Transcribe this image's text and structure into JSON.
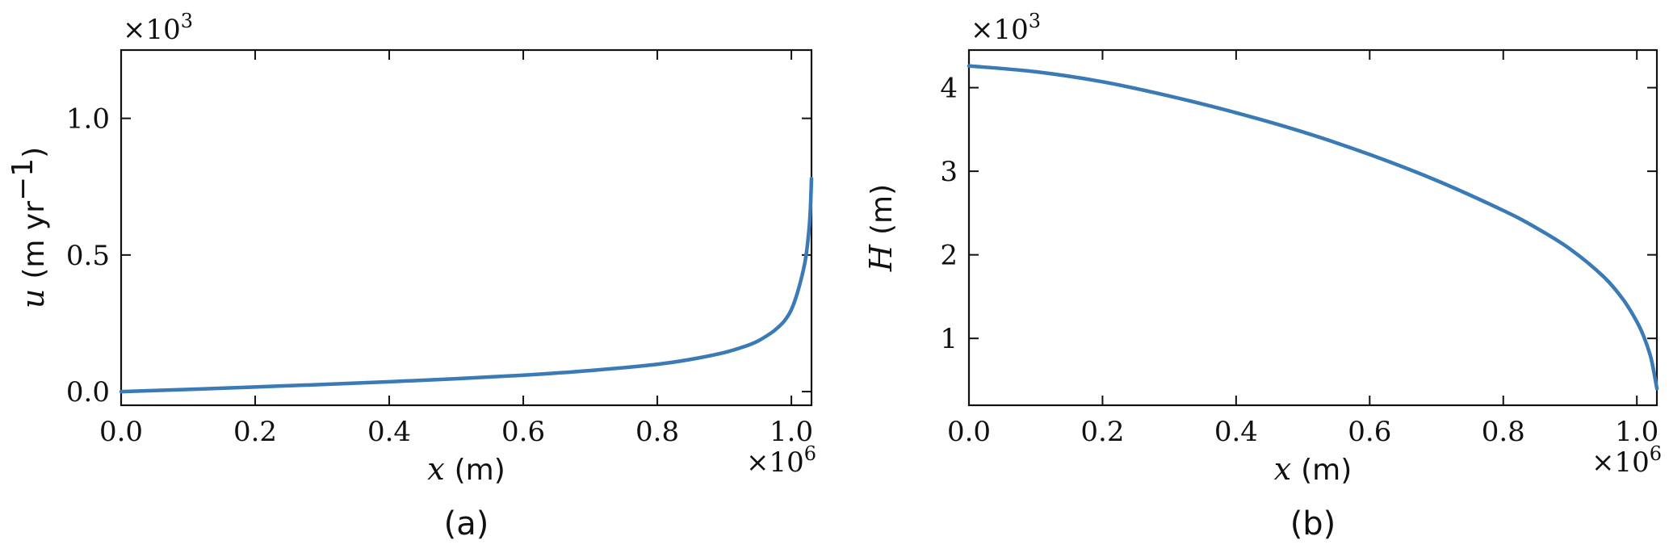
{
  "chart_data": [
    {
      "type": "line",
      "panel_caption": "(a)",
      "ylabel_symbol": "u",
      "ylabel_unit": "(m yr",
      "ylabel_unit_sup": "−1",
      "ylabel_unit_close": ")",
      "xlabel_symbol": "x",
      "xlabel_unit": "(m)",
      "x_offset_label": "×10",
      "x_offset_exp": "6",
      "y_offset_label": "×10",
      "y_offset_exp": "3",
      "xlim": [
        0,
        1.03
      ],
      "ylim": [
        -0.05,
        1.25
      ],
      "xticks": [
        0.0,
        0.2,
        0.4,
        0.6,
        0.8,
        1.0
      ],
      "xtick_labels": [
        "0.0",
        "0.2",
        "0.4",
        "0.6",
        "0.8",
        "1.0"
      ],
      "yticks": [
        0.0,
        0.5,
        1.0
      ],
      "ytick_labels": [
        "0.0",
        "0.5",
        "1.0"
      ],
      "series": [
        {
          "color": "#3a7ab5",
          "x": [
            0.0,
            0.1,
            0.2,
            0.3,
            0.4,
            0.5,
            0.6,
            0.7,
            0.8,
            0.85,
            0.9,
            0.93,
            0.95,
            0.97,
            0.98,
            0.99,
            1.0,
            1.01,
            1.02,
            1.025,
            1.028,
            1.03
          ],
          "y": [
            0.0,
            0.008,
            0.017,
            0.026,
            0.036,
            0.047,
            0.06,
            0.077,
            0.1,
            0.118,
            0.143,
            0.165,
            0.185,
            0.215,
            0.235,
            0.26,
            0.3,
            0.37,
            0.47,
            0.56,
            0.65,
            0.78
          ]
        }
      ]
    },
    {
      "type": "line",
      "panel_caption": "(b)",
      "ylabel_symbol": "H",
      "ylabel_unit": "(m)",
      "xlabel_symbol": "x",
      "xlabel_unit": "(m)",
      "x_offset_label": "×10",
      "x_offset_exp": "6",
      "y_offset_label": "×10",
      "y_offset_exp": "3",
      "xlim": [
        0,
        1.03
      ],
      "ylim": [
        0.2,
        4.45
      ],
      "xticks": [
        0.0,
        0.2,
        0.4,
        0.6,
        0.8,
        1.0
      ],
      "xtick_labels": [
        "0.0",
        "0.2",
        "0.4",
        "0.6",
        "0.8",
        "1.0"
      ],
      "yticks": [
        1,
        2,
        3,
        4
      ],
      "ytick_labels": [
        "1",
        "2",
        "3",
        "4"
      ],
      "series": [
        {
          "color": "#3a7ab5",
          "x": [
            0.0,
            0.1,
            0.2,
            0.3,
            0.4,
            0.5,
            0.6,
            0.7,
            0.8,
            0.85,
            0.9,
            0.95,
            0.98,
            1.0,
            1.01,
            1.02,
            1.025,
            1.03
          ],
          "y": [
            4.26,
            4.19,
            4.07,
            3.9,
            3.7,
            3.47,
            3.2,
            2.89,
            2.53,
            2.32,
            2.07,
            1.74,
            1.46,
            1.2,
            1.03,
            0.8,
            0.62,
            0.4
          ]
        }
      ]
    }
  ]
}
